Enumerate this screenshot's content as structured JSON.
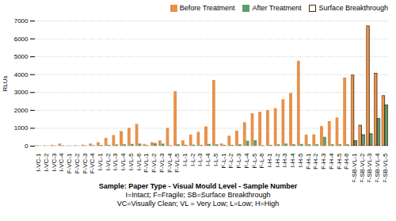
{
  "chart_data": {
    "type": "bar",
    "xlabel": "Sample: Paper Type - Visual Mould Level - Sample Number",
    "annotations": [
      "I=Intact; F=Fragile; SB=Surface Breakthrough",
      "VC=Visually Clean; VL = Very Low; L=Low; H=High"
    ],
    "ylabel": "RLUs",
    "ylim": [
      0,
      7000
    ],
    "yticks": [
      0,
      1000,
      2000,
      3000,
      4000,
      5000,
      6000,
      7000
    ],
    "grid": true,
    "legend": "upper right",
    "categories": [
      "I-VC-1",
      "I-VC-2",
      "I-VC-3",
      "I-VC-4",
      "F-VC-1",
      "F-VC-2",
      "F-VC-3",
      "F-VC-4",
      "I-VL-1",
      "I-VL-2",
      "I-VL-3",
      "I-VL-4",
      "I-VL-5",
      "I-VL-6",
      "F-VL-1",
      "F-VL-2",
      "F-VL-3",
      "F-VL-4",
      "F-VL-5",
      "I-L-1",
      "I-L-2",
      "I-L-3",
      "I-L-4",
      "I-L-5",
      "F-L-1",
      "F-L-2",
      "F-L-3",
      "F-L-4",
      "F-L-5",
      "F-L-6",
      "I-H-1",
      "I-H-2",
      "I-H-3",
      "I-H-4",
      "I-H-5",
      "F-H-1",
      "F-H-2",
      "F-H-3",
      "F-H-4",
      "F-H-5",
      "F-H-6",
      "F-SB-VL-1",
      "F-SB-VL-2",
      "F-SB-VL-3",
      "F-SB-VL-4",
      "F-SB-VL-5"
    ],
    "series": [
      {
        "name": "Before Treatment",
        "color": "#E8914A",
        "values": [
          30,
          20,
          50,
          120,
          15,
          25,
          60,
          120,
          200,
          440,
          600,
          820,
          1000,
          1220,
          100,
          200,
          300,
          1000,
          3050,
          300,
          620,
          780,
          1080,
          3680,
          130,
          560,
          850,
          1320,
          1820,
          1900,
          2000,
          2100,
          2600,
          2950,
          4750,
          620,
          640,
          1100,
          1380,
          1580,
          3820,
          3950,
          1150,
          6700,
          4050,
          2800
        ]
      },
      {
        "name": "After Treatment",
        "color": "#5C9E6E",
        "values": [
          10,
          10,
          15,
          20,
          10,
          10,
          20,
          30,
          40,
          50,
          70,
          80,
          100,
          120,
          30,
          150,
          120,
          30,
          80,
          50,
          60,
          50,
          100,
          80,
          50,
          50,
          80,
          280,
          310,
          30,
          50,
          80,
          120,
          80,
          100,
          80,
          80,
          500,
          80,
          80,
          80,
          280,
          620,
          670,
          1520,
          2280
        ]
      }
    ],
    "outlined": {
      "name": "Surface Breakthrough",
      "color": "#3B2B1A",
      "flags": [
        false,
        false,
        false,
        false,
        false,
        false,
        false,
        false,
        false,
        false,
        false,
        false,
        false,
        false,
        false,
        false,
        false,
        false,
        false,
        false,
        false,
        false,
        false,
        false,
        false,
        false,
        false,
        false,
        false,
        false,
        false,
        false,
        false,
        false,
        false,
        false,
        false,
        false,
        false,
        false,
        false,
        true,
        true,
        true,
        true,
        true
      ]
    }
  }
}
